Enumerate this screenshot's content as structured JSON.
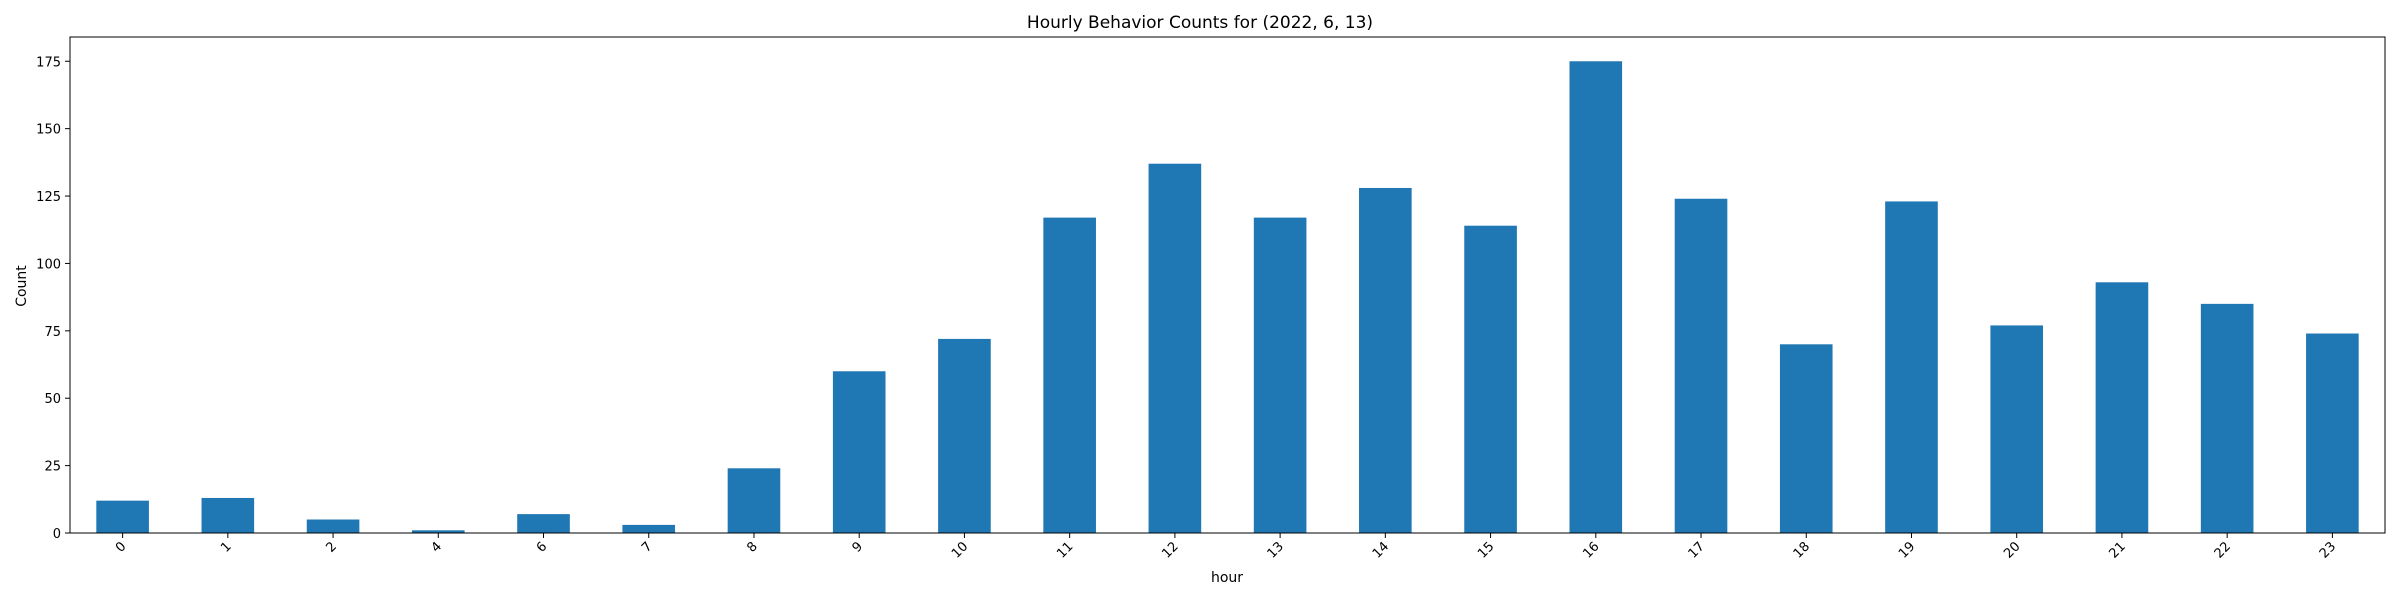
{
  "chart_data": {
    "type": "bar",
    "title": "Hourly Behavior Counts for (2022, 6, 13)",
    "xlabel": "hour",
    "ylabel": "Count",
    "categories": [
      "0",
      "1",
      "2",
      "4",
      "6",
      "7",
      "8",
      "9",
      "10",
      "11",
      "12",
      "13",
      "14",
      "15",
      "16",
      "17",
      "18",
      "19",
      "20",
      "21",
      "22",
      "23"
    ],
    "values": [
      12,
      13,
      5,
      1,
      7,
      3,
      24,
      60,
      72,
      117,
      137,
      117,
      128,
      114,
      175,
      124,
      70,
      123,
      77,
      93,
      85,
      74
    ],
    "ylim": [
      0,
      184
    ],
    "yticks": [
      0,
      25,
      50,
      75,
      100,
      125,
      150,
      175
    ],
    "bar_color": "#1f77b4",
    "grid": false,
    "xtick_rotation": 45
  }
}
